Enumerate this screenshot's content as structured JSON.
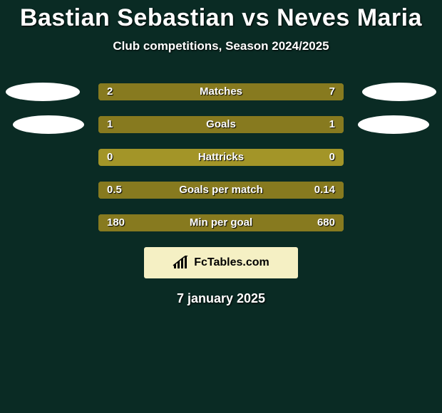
{
  "title": "Bastian Sebastian vs Neves Maria",
  "title_fontsize": 34,
  "title_color": "#ffffff",
  "subtitle": "Club competitions, Season 2024/2025",
  "subtitle_fontsize": 17,
  "subtitle_color": "#ffffff",
  "background_color": "#0a2b24",
  "bar_track_color": "#a39528",
  "bar_fill_color": "#877a1f",
  "avatar_row0_left": true,
  "avatar_row0_right": true,
  "avatar_row1_left": true,
  "avatar_row1_right": true,
  "value_fontsize": 15,
  "label_fontsize": 15,
  "rows": [
    {
      "label": "Matches",
      "left_val": "2",
      "right_val": "7",
      "left_pct": 22,
      "right_pct": 78
    },
    {
      "label": "Goals",
      "left_val": "1",
      "right_val": "1",
      "left_pct": 50,
      "right_pct": 50
    },
    {
      "label": "Hattricks",
      "left_val": "0",
      "right_val": "0",
      "left_pct": 0,
      "right_pct": 0
    },
    {
      "label": "Goals per match",
      "left_val": "0.5",
      "right_val": "0.14",
      "left_pct": 78,
      "right_pct": 22
    },
    {
      "label": "Min per goal",
      "left_val": "180",
      "right_val": "680",
      "left_pct": 21,
      "right_pct": 79
    }
  ],
  "logo_text": "FcTables.com",
  "logo_bg_color": "#f5f0c4",
  "logo_text_color": "#000000",
  "logo_fontsize": 16,
  "date": "7 january 2025",
  "date_fontsize": 18,
  "date_color": "#ffffff"
}
